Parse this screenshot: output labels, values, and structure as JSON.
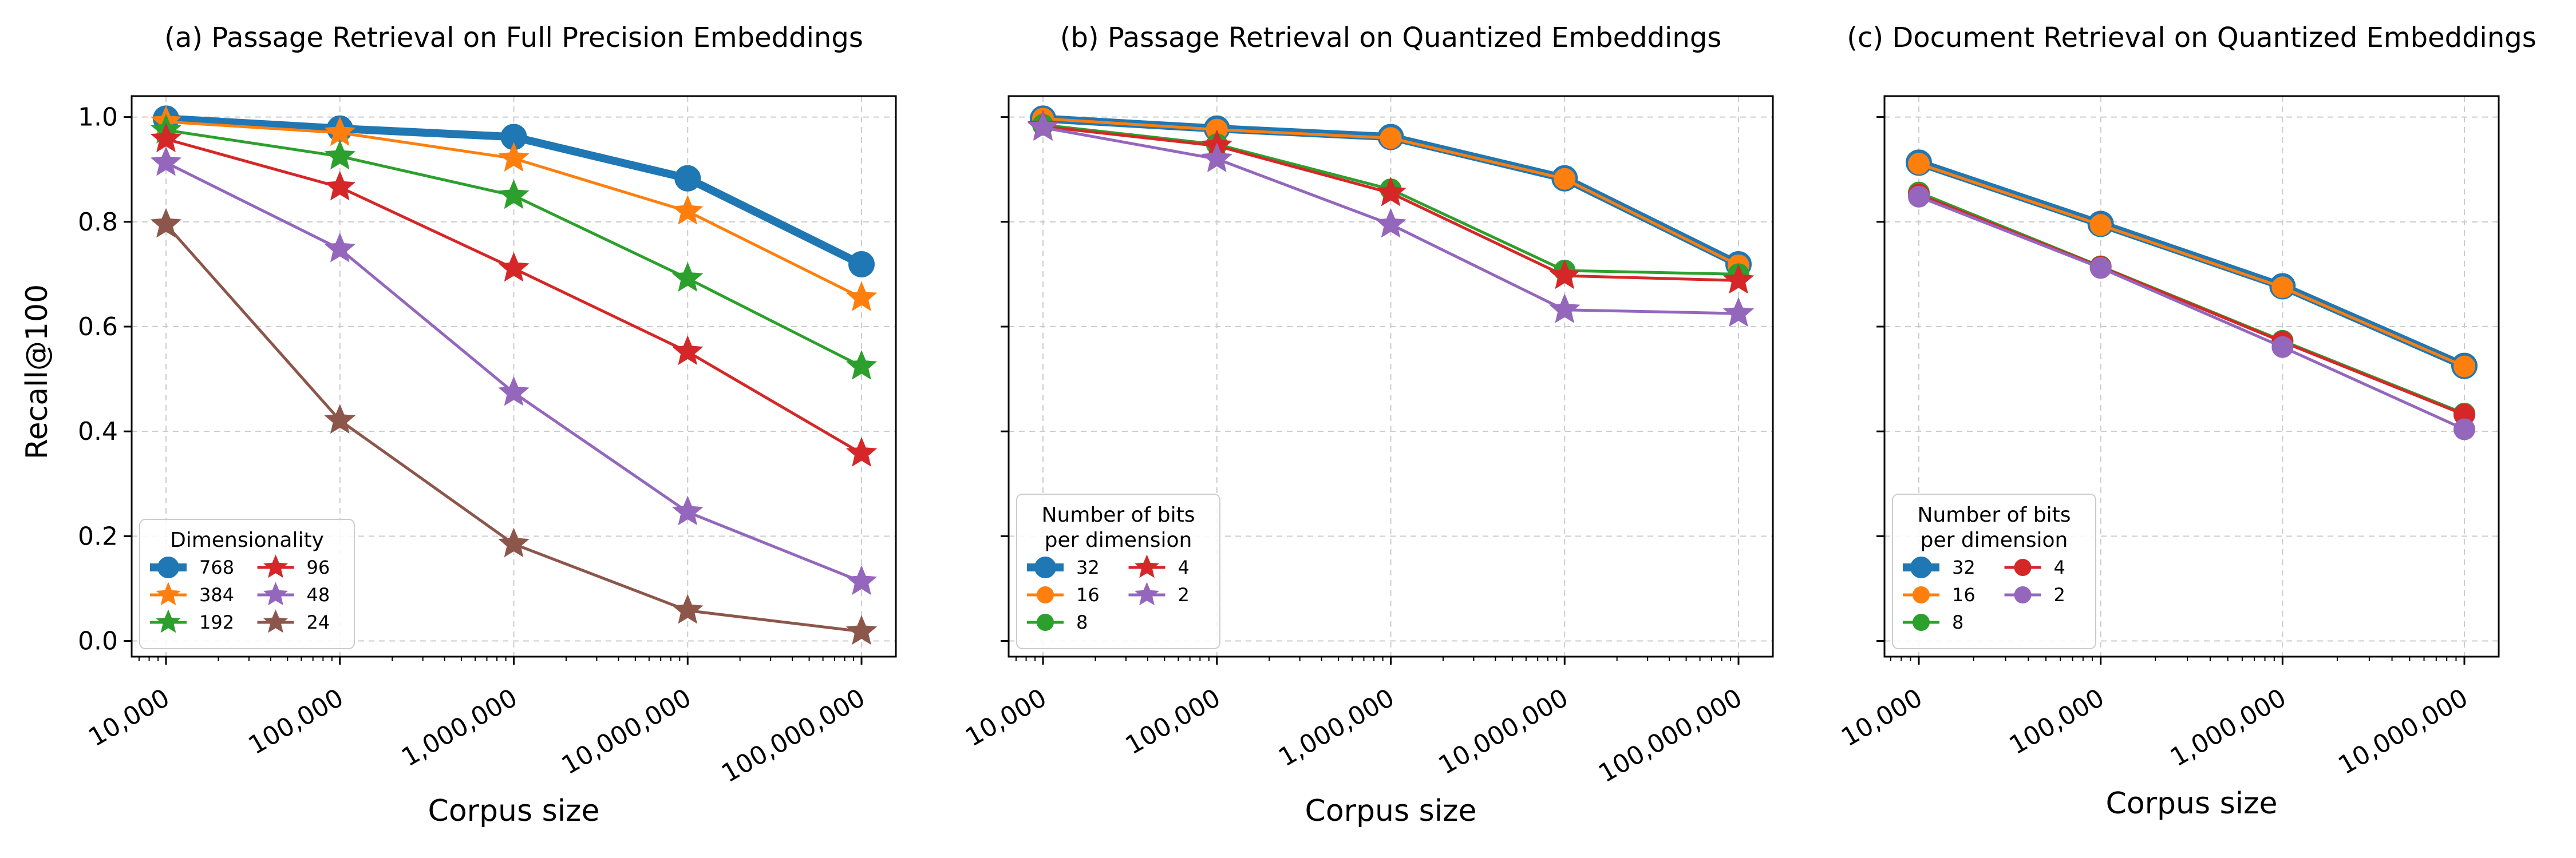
{
  "figure": {
    "ylabel": "Recall@100",
    "xlabel": "Corpus size"
  },
  "colors": {
    "blue": "#1f77b4",
    "orange": "#ff7f0e",
    "green": "#2ca02c",
    "red": "#d62728",
    "purple": "#9467bd",
    "brown": "#8c564b"
  },
  "chart_data": [
    {
      "type": "line",
      "title": "(a) Passage Retrieval on Full Precision Embeddings",
      "xlabel": "Corpus size",
      "ylabel": "Recall@100",
      "xscale": "log",
      "x": [
        10000,
        100000,
        1000000,
        10000000,
        100000000
      ],
      "x_tick_labels": [
        "10,000",
        "100,000",
        "1,000,000",
        "10,000,000",
        "100,000,000"
      ],
      "ylim": [
        -0.03,
        1.04
      ],
      "y_ticks": [
        "0.0",
        "0.2",
        "0.4",
        "0.6",
        "0.8",
        "1.0"
      ],
      "grid": true,
      "legend": {
        "title": "Dimensionality",
        "placement": "lower-left",
        "columns": 2
      },
      "series": [
        {
          "name": "768",
          "color": "#1f77b4",
          "marker": "circle",
          "width": "thick",
          "values": [
            0.997,
            0.978,
            0.962,
            0.883,
            0.719
          ]
        },
        {
          "name": "384",
          "color": "#ff7f0e",
          "marker": "star",
          "values": [
            0.991,
            0.97,
            0.921,
            0.82,
            0.655
          ]
        },
        {
          "name": "192",
          "color": "#2ca02c",
          "marker": "star",
          "values": [
            0.975,
            0.925,
            0.85,
            0.692,
            0.524
          ]
        },
        {
          "name": "96",
          "color": "#d62728",
          "marker": "star",
          "values": [
            0.958,
            0.866,
            0.711,
            0.552,
            0.358
          ]
        },
        {
          "name": "48",
          "color": "#9467bd",
          "marker": "star",
          "values": [
            0.913,
            0.748,
            0.474,
            0.246,
            0.113
          ]
        },
        {
          "name": "24",
          "color": "#8c564b",
          "marker": "star",
          "values": [
            0.795,
            0.421,
            0.185,
            0.058,
            0.018
          ]
        }
      ]
    },
    {
      "type": "line",
      "title": "(b) Passage Retrieval on Quantized Embeddings",
      "xlabel": "Corpus size",
      "xscale": "log",
      "x": [
        10000,
        100000,
        1000000,
        10000000,
        100000000
      ],
      "x_tick_labels": [
        "10,000",
        "100,000",
        "1,000,000",
        "10,000,000",
        "100,000,000"
      ],
      "ylim": [
        -0.03,
        1.04
      ],
      "grid": true,
      "legend": {
        "title": "Number of bits per dimension",
        "title_lines": [
          "Number of bits",
          "per dimension"
        ],
        "placement": "lower-left",
        "columns": 2
      },
      "series": [
        {
          "name": "32",
          "color": "#1f77b4",
          "marker": "circle",
          "width": "thick",
          "values": [
            0.997,
            0.978,
            0.962,
            0.883,
            0.719
          ]
        },
        {
          "name": "16",
          "color": "#ff7f0e",
          "marker": "circle",
          "values": [
            0.997,
            0.976,
            0.96,
            0.882,
            0.717
          ]
        },
        {
          "name": "8",
          "color": "#2ca02c",
          "marker": "circle",
          "values": [
            0.985,
            0.948,
            0.862,
            0.707,
            0.7
          ]
        },
        {
          "name": "4",
          "color": "#d62728",
          "marker": "star",
          "values": [
            0.982,
            0.945,
            0.855,
            0.697,
            0.688
          ]
        },
        {
          "name": "2",
          "color": "#9467bd",
          "marker": "star",
          "values": [
            0.98,
            0.92,
            0.795,
            0.632,
            0.625
          ]
        }
      ]
    },
    {
      "type": "line",
      "title": "(c) Document Retrieval on Quantized Embeddings",
      "xlabel": "Corpus size",
      "xscale": "log",
      "x": [
        10000,
        100000,
        1000000,
        10000000
      ],
      "x_tick_labels": [
        "10,000",
        "100,000",
        "1,000,000",
        "10,000,000"
      ],
      "ylim": [
        -0.03,
        1.04
      ],
      "grid": true,
      "legend": {
        "title": "Number of bits per dimension",
        "title_lines": [
          "Number of bits",
          "per dimension"
        ],
        "placement": "lower-left",
        "columns": 2
      },
      "series": [
        {
          "name": "32",
          "color": "#1f77b4",
          "marker": "circle",
          "width": "thick",
          "values": [
            0.913,
            0.796,
            0.677,
            0.525
          ]
        },
        {
          "name": "16",
          "color": "#ff7f0e",
          "marker": "circle",
          "values": [
            0.911,
            0.794,
            0.675,
            0.524
          ]
        },
        {
          "name": "8",
          "color": "#2ca02c",
          "marker": "circle",
          "values": [
            0.856,
            0.715,
            0.573,
            0.434
          ]
        },
        {
          "name": "4",
          "color": "#d62728",
          "marker": "circle",
          "values": [
            0.852,
            0.714,
            0.571,
            0.432
          ]
        },
        {
          "name": "2",
          "color": "#9467bd",
          "marker": "circle",
          "values": [
            0.848,
            0.712,
            0.561,
            0.404
          ]
        }
      ]
    }
  ]
}
